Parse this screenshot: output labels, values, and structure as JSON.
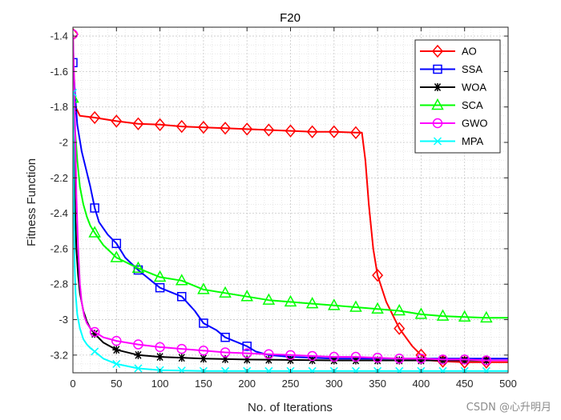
{
  "chart_data": {
    "type": "line",
    "title": "F20",
    "xlabel": "No. of Iterations",
    "ylabel": "Fitness Function",
    "xlim": [
      0,
      500
    ],
    "ylim": [
      -3.3,
      -1.35
    ],
    "xticks": [
      0,
      50,
      100,
      150,
      200,
      250,
      300,
      350,
      400,
      450,
      500
    ],
    "yticks": [
      -3.2,
      -3,
      -2.8,
      -2.6,
      -2.4,
      -2.2,
      -2,
      -1.8,
      -1.6,
      -1.4
    ],
    "grid": true,
    "legend_position": "top-right",
    "series": [
      {
        "name": "AO",
        "color": "#ff0000",
        "marker": "diamond",
        "marker_x": [
          0,
          25,
          50,
          75,
          100,
          125,
          150,
          175,
          200,
          225,
          250,
          275,
          300,
          325,
          350,
          375,
          400,
          425,
          450,
          475
        ],
        "x": [
          0,
          1,
          3,
          8,
          25,
          50,
          75,
          100,
          125,
          150,
          175,
          200,
          225,
          250,
          275,
          300,
          325,
          332,
          336,
          340,
          345,
          350,
          360,
          375,
          390,
          400,
          410,
          425,
          450,
          475,
          500
        ],
        "y": [
          -1.39,
          -1.6,
          -1.8,
          -1.85,
          -1.86,
          -1.88,
          -1.895,
          -1.9,
          -1.91,
          -1.915,
          -1.92,
          -1.925,
          -1.93,
          -1.935,
          -1.94,
          -1.94,
          -1.945,
          -1.945,
          -2.1,
          -2.35,
          -2.6,
          -2.75,
          -2.9,
          -3.05,
          -3.15,
          -3.2,
          -3.23,
          -3.235,
          -3.24,
          -3.24,
          -3.24
        ]
      },
      {
        "name": "SSA",
        "color": "#0000ff",
        "marker": "square",
        "marker_x": [
          0,
          25,
          50,
          75,
          100,
          125,
          150,
          175,
          200
        ],
        "x": [
          0,
          2,
          5,
          10,
          15,
          20,
          25,
          30,
          40,
          50,
          60,
          75,
          90,
          100,
          115,
          125,
          140,
          150,
          165,
          175,
          190,
          200,
          210,
          225,
          250,
          300,
          350,
          400,
          450,
          500
        ],
        "y": [
          -1.55,
          -1.7,
          -1.9,
          -2.05,
          -2.15,
          -2.25,
          -2.37,
          -2.45,
          -2.52,
          -2.57,
          -2.65,
          -2.72,
          -2.78,
          -2.82,
          -2.85,
          -2.87,
          -2.95,
          -3.02,
          -3.06,
          -3.1,
          -3.13,
          -3.15,
          -3.18,
          -3.2,
          -3.21,
          -3.22,
          -3.22,
          -3.22,
          -3.22,
          -3.22
        ]
      },
      {
        "name": "WOA",
        "color": "#000000",
        "marker": "asterisk",
        "marker_x": [
          0,
          25,
          50,
          75,
          100,
          125,
          150,
          175,
          200,
          225,
          250,
          275,
          300,
          325,
          350,
          375,
          400,
          425,
          450,
          475
        ],
        "x": [
          0,
          2,
          4,
          6,
          8,
          12,
          16,
          20,
          25,
          35,
          50,
          75,
          100,
          150,
          200,
          300,
          400,
          500
        ],
        "y": [
          -1.82,
          -2.3,
          -2.6,
          -2.75,
          -2.85,
          -2.95,
          -3.01,
          -3.05,
          -3.08,
          -3.13,
          -3.17,
          -3.2,
          -3.21,
          -3.22,
          -3.225,
          -3.23,
          -3.23,
          -3.23
        ]
      },
      {
        "name": "SCA",
        "color": "#00ff00",
        "marker": "triangle",
        "marker_x": [
          0,
          25,
          50,
          75,
          100,
          125,
          150,
          175,
          200,
          225,
          250,
          275,
          300,
          325,
          350,
          375,
          400,
          425,
          450,
          475
        ],
        "x": [
          0,
          2,
          5,
          8,
          12,
          16,
          20,
          25,
          35,
          50,
          75,
          100,
          125,
          150,
          175,
          200,
          225,
          250,
          275,
          300,
          325,
          350,
          375,
          400,
          425,
          450,
          475,
          500
        ],
        "y": [
          -1.75,
          -1.9,
          -2.1,
          -2.25,
          -2.35,
          -2.42,
          -2.47,
          -2.51,
          -2.58,
          -2.65,
          -2.71,
          -2.76,
          -2.78,
          -2.83,
          -2.85,
          -2.87,
          -2.89,
          -2.9,
          -2.91,
          -2.92,
          -2.93,
          -2.94,
          -2.95,
          -2.97,
          -2.98,
          -2.985,
          -2.99,
          -2.99
        ]
      },
      {
        "name": "GWO",
        "color": "#ff00ff",
        "marker": "circle",
        "marker_x": [
          0,
          25,
          50,
          75,
          100,
          125,
          150,
          175,
          200,
          225,
          250,
          275,
          300,
          325,
          350,
          375,
          400,
          425,
          450,
          475
        ],
        "x": [
          0,
          2,
          4,
          6,
          8,
          10,
          13,
          16,
          20,
          25,
          35,
          50,
          75,
          100,
          125,
          150,
          175,
          200,
          225,
          250,
          275,
          300,
          325,
          350,
          375,
          400,
          425,
          450,
          475,
          500
        ],
        "y": [
          -1.39,
          -1.8,
          -2.3,
          -2.6,
          -2.8,
          -2.9,
          -2.98,
          -3.02,
          -3.05,
          -3.07,
          -3.1,
          -3.12,
          -3.14,
          -3.155,
          -3.165,
          -3.175,
          -3.185,
          -3.19,
          -3.195,
          -3.2,
          -3.205,
          -3.21,
          -3.21,
          -3.215,
          -3.22,
          -3.22,
          -3.225,
          -3.225,
          -3.23,
          -3.23
        ]
      },
      {
        "name": "MPA",
        "color": "#00ffff",
        "marker": "x",
        "marker_x": [
          0,
          25,
          50,
          75,
          100,
          125,
          150,
          175,
          200,
          225,
          250,
          275,
          300,
          325,
          350,
          375,
          400,
          425,
          450,
          475
        ],
        "x": [
          0,
          1,
          2,
          3,
          5,
          8,
          12,
          16,
          20,
          25,
          35,
          50,
          75,
          100,
          150,
          200,
          300,
          400,
          500
        ],
        "y": [
          -1.72,
          -2.3,
          -2.7,
          -2.85,
          -2.97,
          -3.05,
          -3.11,
          -3.14,
          -3.16,
          -3.18,
          -3.22,
          -3.25,
          -3.275,
          -3.285,
          -3.29,
          -3.29,
          -3.29,
          -3.29,
          -3.29
        ]
      }
    ]
  },
  "watermark": "CSDN @心升明月"
}
